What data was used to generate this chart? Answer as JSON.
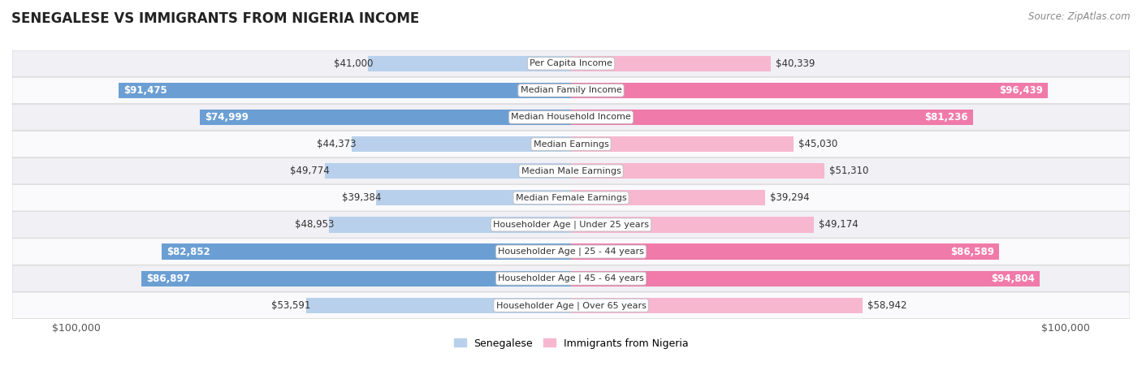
{
  "title": "SENEGALESE VS IMMIGRANTS FROM NIGERIA INCOME",
  "source": "Source: ZipAtlas.com",
  "categories": [
    "Per Capita Income",
    "Median Family Income",
    "Median Household Income",
    "Median Earnings",
    "Median Male Earnings",
    "Median Female Earnings",
    "Householder Age | Under 25 years",
    "Householder Age | 25 - 44 years",
    "Householder Age | 45 - 64 years",
    "Householder Age | Over 65 years"
  ],
  "senegalese": [
    41000,
    91475,
    74999,
    44373,
    49774,
    39384,
    48953,
    82852,
    86897,
    53591
  ],
  "nigeria": [
    40339,
    96439,
    81236,
    45030,
    51310,
    39294,
    49174,
    86589,
    94804,
    58942
  ],
  "senegalese_labels": [
    "$41,000",
    "$91,475",
    "$74,999",
    "$44,373",
    "$49,774",
    "$39,384",
    "$48,953",
    "$82,852",
    "$86,897",
    "$53,591"
  ],
  "nigeria_labels": [
    "$40,339",
    "$96,439",
    "$81,236",
    "$45,030",
    "$51,310",
    "$39,294",
    "$49,174",
    "$86,589",
    "$94,804",
    "$58,942"
  ],
  "max_val": 100000,
  "blue_light": "#b8d0eb",
  "blue_dark": "#6b9fd4",
  "pink_light": "#f7b8cf",
  "pink_dark": "#f07aaa",
  "threshold": 65000,
  "label_blue": "Senegalese",
  "label_pink": "Immigrants from Nigeria",
  "bg_light": "#f0f0f5",
  "bg_dark": "#e2e2ea",
  "bar_height": 0.58,
  "title_fontsize": 12,
  "source_fontsize": 8.5,
  "label_fontsize": 8.5,
  "cat_fontsize": 8.0
}
